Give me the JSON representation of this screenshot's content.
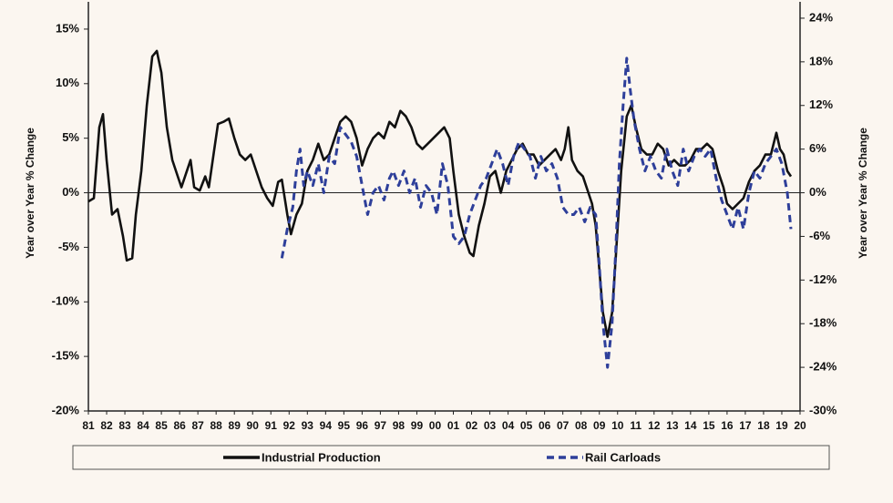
{
  "chart_data": {
    "type": "line",
    "y_label": "Year over Year % Change",
    "y2_label": "Year over Year % Change",
    "xlim": [
      1981,
      2020
    ],
    "xticks": [
      {
        "value": 1981,
        "label": "81"
      },
      {
        "value": 1982,
        "label": "82"
      },
      {
        "value": 1983,
        "label": "83"
      },
      {
        "value": 1984,
        "label": "84"
      },
      {
        "value": 1985,
        "label": "85"
      },
      {
        "value": 1986,
        "label": "86"
      },
      {
        "value": 1987,
        "label": "87"
      },
      {
        "value": 1988,
        "label": "88"
      },
      {
        "value": 1989,
        "label": "89"
      },
      {
        "value": 1990,
        "label": "90"
      },
      {
        "value": 1991,
        "label": "91"
      },
      {
        "value": 1992,
        "label": "92"
      },
      {
        "value": 1993,
        "label": "93"
      },
      {
        "value": 1994,
        "label": "94"
      },
      {
        "value": 1995,
        "label": "95"
      },
      {
        "value": 1996,
        "label": "96"
      },
      {
        "value": 1997,
        "label": "97"
      },
      {
        "value": 1998,
        "label": "98"
      },
      {
        "value": 1999,
        "label": "99"
      },
      {
        "value": 2000,
        "label": "00"
      },
      {
        "value": 2001,
        "label": "01"
      },
      {
        "value": 2002,
        "label": "02"
      },
      {
        "value": 2003,
        "label": "03"
      },
      {
        "value": 2004,
        "label": "04"
      },
      {
        "value": 2005,
        "label": "05"
      },
      {
        "value": 2006,
        "label": "06"
      },
      {
        "value": 2007,
        "label": "07"
      },
      {
        "value": 2008,
        "label": "08"
      },
      {
        "value": 2009,
        "label": "09"
      },
      {
        "value": 2010,
        "label": "10"
      },
      {
        "value": 2011,
        "label": "11"
      },
      {
        "value": 2012,
        "label": "12"
      },
      {
        "value": 2013,
        "label": "13"
      },
      {
        "value": 2014,
        "label": "14"
      },
      {
        "value": 2015,
        "label": "15"
      },
      {
        "value": 2016,
        "label": "16"
      },
      {
        "value": 2017,
        "label": "17"
      },
      {
        "value": 2018,
        "label": "18"
      },
      {
        "value": 2019,
        "label": "19"
      },
      {
        "value": 2020,
        "label": "20"
      }
    ],
    "ylim": [
      -20,
      17.5
    ],
    "yticks": [
      {
        "value": -20,
        "label": "-20%"
      },
      {
        "value": -15,
        "label": "-15%"
      },
      {
        "value": -10,
        "label": "-10%"
      },
      {
        "value": -5,
        "label": "-5%"
      },
      {
        "value": 0,
        "label": "0%"
      },
      {
        "value": 5,
        "label": "5%"
      },
      {
        "value": 10,
        "label": "10%"
      },
      {
        "value": 15,
        "label": "15%"
      }
    ],
    "y2lim": [
      -30,
      26.25
    ],
    "y2ticks": [
      {
        "value": -30,
        "label": "-30%"
      },
      {
        "value": -24,
        "label": "-24%"
      },
      {
        "value": -18,
        "label": "-18%"
      },
      {
        "value": -12,
        "label": "-12%"
      },
      {
        "value": -6,
        "label": "-6%"
      },
      {
        "value": 0,
        "label": "0%"
      },
      {
        "value": 6,
        "label": "6%"
      },
      {
        "value": 12,
        "label": "12%"
      },
      {
        "value": 18,
        "label": "18%"
      },
      {
        "value": 24,
        "label": "24%"
      }
    ],
    "series": [
      {
        "name": "Industrial Production",
        "color": "#111111",
        "dashed": false,
        "x": [
          1981.0,
          1981.3,
          1981.6,
          1981.8,
          1982.0,
          1982.3,
          1982.6,
          1982.9,
          1983.1,
          1983.4,
          1983.6,
          1983.9,
          1984.2,
          1984.5,
          1984.75,
          1985.0,
          1985.3,
          1985.6,
          1985.9,
          1986.1,
          1986.4,
          1986.6,
          1986.8,
          1987.1,
          1987.4,
          1987.6,
          1987.9,
          1988.1,
          1988.4,
          1988.7,
          1989.0,
          1989.3,
          1989.6,
          1989.9,
          1990.2,
          1990.5,
          1990.8,
          1991.1,
          1991.4,
          1991.6,
          1991.9,
          1992.1,
          1992.4,
          1992.7,
          1993.0,
          1993.3,
          1993.6,
          1993.9,
          1994.2,
          1994.5,
          1994.8,
          1995.1,
          1995.4,
          1995.7,
          1996.0,
          1996.3,
          1996.6,
          1996.9,
          1997.2,
          1997.5,
          1997.8,
          1998.1,
          1998.4,
          1998.7,
          1999.0,
          1999.3,
          1999.6,
          1999.9,
          2000.2,
          2000.5,
          2000.8,
          2001.0,
          2001.3,
          2001.6,
          2001.9,
          2002.1,
          2002.4,
          2002.7,
          2003.0,
          2003.3,
          2003.6,
          2003.9,
          2004.2,
          2004.5,
          2004.8,
          2005.1,
          2005.4,
          2005.7,
          2006.0,
          2006.3,
          2006.6,
          2006.9,
          2007.1,
          2007.3,
          2007.5,
          2007.8,
          2008.1,
          2008.4,
          2008.6,
          2008.8,
          2009.0,
          2009.2,
          2009.45,
          2009.7,
          2009.9,
          2010.2,
          2010.5,
          2010.75,
          2011.0,
          2011.3,
          2011.6,
          2011.9,
          2012.2,
          2012.5,
          2012.8,
          2013.1,
          2013.4,
          2013.7,
          2014.0,
          2014.3,
          2014.6,
          2014.9,
          2015.2,
          2015.5,
          2015.8,
          2016.0,
          2016.3,
          2016.6,
          2016.9,
          2017.2,
          2017.5,
          2017.8,
          2018.1,
          2018.4,
          2018.7,
          2018.9,
          2019.1,
          2019.3,
          2019.5
        ],
        "values": [
          -0.8,
          -0.5,
          6,
          7.2,
          3,
          -2,
          -1.5,
          -4,
          -6.2,
          -6,
          -2,
          2,
          8,
          12.5,
          13,
          11,
          6,
          3,
          1.5,
          0.5,
          2,
          3,
          0.5,
          0.2,
          1.5,
          0.5,
          4,
          6.3,
          6.5,
          6.8,
          5,
          3.5,
          3,
          3.5,
          2,
          0.5,
          -0.5,
          -1.2,
          1,
          1.2,
          -2,
          -3.8,
          -2,
          -1,
          2,
          3,
          4.5,
          3,
          3.5,
          5,
          6.5,
          7,
          6.5,
          5,
          2.5,
          4,
          5,
          5.5,
          5,
          6.5,
          6,
          7.5,
          7,
          6,
          4.5,
          4,
          4.5,
          5,
          5.5,
          6,
          5,
          2,
          -2,
          -4,
          -5.5,
          -5.8,
          -3,
          -1,
          1.5,
          2,
          0,
          2,
          3,
          4,
          4.5,
          3.5,
          3.5,
          2.5,
          3,
          3.5,
          4,
          3,
          4,
          6,
          3,
          2,
          1.5,
          0,
          -1,
          -3,
          -7,
          -11,
          -13.2,
          -11,
          -6,
          2,
          7,
          8,
          6,
          4,
          3.5,
          3.5,
          4.5,
          4,
          2.5,
          3,
          2.5,
          2.5,
          3,
          4,
          4,
          4.5,
          4,
          2,
          0.5,
          -1,
          -1.5,
          -1,
          -0.5,
          1,
          2,
          2.5,
          3.5,
          3.5,
          5.5,
          4,
          3.5,
          2,
          1.5
        ]
      },
      {
        "name": "Rail Carloads",
        "color": "#2e3f9a",
        "dashed": true,
        "axis": "y2",
        "x": [
          1991.6,
          1991.9,
          1992.2,
          1992.4,
          1992.6,
          1992.8,
          1993.0,
          1993.3,
          1993.6,
          1993.9,
          1994.2,
          1994.5,
          1994.8,
          1995.1,
          1995.4,
          1995.7,
          1996.0,
          1996.3,
          1996.6,
          1996.9,
          1997.2,
          1997.5,
          1997.7,
          1998.0,
          1998.3,
          1998.6,
          1998.9,
          1999.2,
          1999.5,
          1999.8,
          2000.1,
          2000.4,
          2000.7,
          2001.0,
          2001.3,
          2001.6,
          2001.9,
          2002.2,
          2002.5,
          2002.8,
          2003.1,
          2003.4,
          2003.7,
          2004.0,
          2004.3,
          2004.6,
          2004.9,
          2005.2,
          2005.5,
          2005.8,
          2006.1,
          2006.4,
          2006.7,
          2007.0,
          2007.3,
          2007.6,
          2007.9,
          2008.2,
          2008.5,
          2008.8,
          2009.0,
          2009.2,
          2009.45,
          2009.7,
          2009.9,
          2010.1,
          2010.3,
          2010.5,
          2010.7,
          2010.9,
          2011.2,
          2011.5,
          2011.8,
          2012.1,
          2012.4,
          2012.7,
          2013.0,
          2013.3,
          2013.6,
          2013.9,
          2014.2,
          2014.5,
          2014.8,
          2015.1,
          2015.4,
          2015.7,
          2016.0,
          2016.3,
          2016.6,
          2016.9,
          2017.2,
          2017.5,
          2017.8,
          2018.1,
          2018.4,
          2018.7,
          2019.0,
          2019.3,
          2019.5
        ],
        "values": [
          -9,
          -5,
          -2,
          3,
          6,
          1,
          3,
          1,
          4,
          0,
          5,
          4,
          9,
          8,
          7,
          5,
          1,
          -3,
          0,
          1,
          -1,
          2,
          3,
          1,
          3,
          0,
          2,
          -2,
          1,
          0,
          -3,
          4,
          1,
          -6,
          -7,
          -6,
          -3,
          -1,
          1,
          2,
          4,
          6,
          4,
          1,
          5,
          7,
          6,
          5,
          2,
          5,
          3,
          4,
          2,
          -2,
          -3,
          -3,
          -2,
          -4,
          -2,
          -3,
          -10,
          -18,
          -24,
          -18,
          -8,
          4,
          12,
          18.5,
          14,
          10,
          6,
          3,
          5,
          3,
          2,
          6,
          3,
          1,
          6,
          3,
          5,
          6,
          5,
          6,
          2,
          -1,
          -3,
          -5,
          -2,
          -5,
          0,
          3,
          2,
          4,
          5,
          6,
          4,
          0,
          -5
        ]
      }
    ]
  }
}
